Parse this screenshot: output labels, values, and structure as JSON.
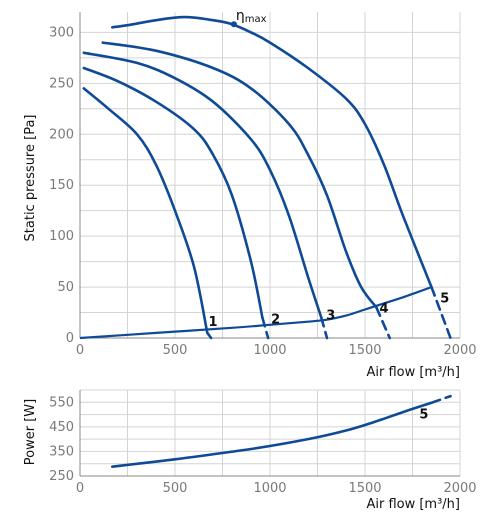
{
  "accent_color": "#0e4a96",
  "chart_data": [
    {
      "type": "line",
      "xlabel": "Air flow [m³/h]",
      "ylabel": "Static pressure [Pa]",
      "xlim": [
        0,
        2000
      ],
      "ylim": [
        0,
        320
      ],
      "xticks": [
        0,
        500,
        1000,
        1500,
        2000
      ],
      "yticks": [
        0,
        50,
        100,
        150,
        200,
        250,
        300
      ],
      "grid": true,
      "series": [
        {
          "name": "1",
          "x": [
            20,
            150,
            300,
            400,
            500,
            600,
            670
          ],
          "y": [
            245,
            225,
            200,
            170,
            125,
            70,
            5
          ],
          "dashed_x": [
            670,
            690
          ],
          "dashed_y": [
            5,
            0
          ]
        },
        {
          "name": "2",
          "x": [
            20,
            200,
            400,
            600,
            700,
            800,
            900,
            960
          ],
          "y": [
            265,
            252,
            232,
            205,
            180,
            140,
            75,
            20
          ],
          "dashed_x": [
            960,
            990
          ],
          "dashed_y": [
            20,
            0
          ]
        },
        {
          "name": "3",
          "x": [
            20,
            300,
            500,
            700,
            900,
            1000,
            1100,
            1200,
            1270
          ],
          "y": [
            280,
            270,
            255,
            232,
            195,
            165,
            120,
            60,
            20
          ],
          "dashed_x": [
            1270,
            1300
          ],
          "dashed_y": [
            20,
            0
          ]
        },
        {
          "name": "4",
          "x": [
            120,
            400,
            700,
            900,
            1100,
            1200,
            1300,
            1400,
            1480,
            1560
          ],
          "y": [
            290,
            282,
            265,
            245,
            210,
            180,
            140,
            85,
            50,
            30
          ],
          "dashed_x": [
            1560,
            1630
          ],
          "dashed_y": [
            30,
            0
          ]
        },
        {
          "name": "5",
          "x": [
            170,
            250,
            400,
            550,
            700,
            800,
            900,
            1000,
            1200,
            1400,
            1500,
            1600,
            1700,
            1850
          ],
          "y": [
            305,
            307,
            312,
            315,
            312,
            308,
            300,
            290,
            265,
            235,
            210,
            170,
            120,
            50
          ],
          "dashed_x": [
            1850,
            1950
          ],
          "dashed_y": [
            50,
            0
          ]
        },
        {
          "name": "system",
          "x": [
            0,
            400,
            800,
            1000,
            1200,
            1300,
            1400,
            1500,
            1600,
            1700,
            1850
          ],
          "y": [
            0,
            5,
            10,
            13,
            16,
            18,
            22,
            28,
            34,
            40,
            50
          ]
        }
      ],
      "curve_labels": [
        {
          "text": "1",
          "x": 700,
          "y": 12
        },
        {
          "text": "2",
          "x": 1030,
          "y": 14
        },
        {
          "text": "3",
          "x": 1320,
          "y": 18
        },
        {
          "text": "4",
          "x": 1600,
          "y": 25
        },
        {
          "text": "5",
          "x": 1920,
          "y": 35
        }
      ],
      "annotation": {
        "text": "η",
        "sub": "max",
        "x": 810,
        "y": 308
      }
    },
    {
      "type": "line",
      "xlabel": "Air flow [m³/h]",
      "ylabel": "Power [W]",
      "xlim": [
        0,
        2000
      ],
      "ylim": [
        250,
        600
      ],
      "xticks": [
        0,
        500,
        1000,
        1500,
        2000
      ],
      "yticks": [
        250,
        350,
        450,
        550
      ],
      "grid": true,
      "series": [
        {
          "name": "5",
          "x": [
            170,
            500,
            900,
            1200,
            1400,
            1550,
            1700,
            1850
          ],
          "y": [
            288,
            318,
            360,
            400,
            435,
            470,
            510,
            548
          ],
          "dashed_x": [
            1850,
            1950
          ],
          "dashed_y": [
            548,
            575
          ]
        }
      ],
      "curve_labels": [
        {
          "text": "5",
          "x": 1810,
          "y": 485
        }
      ]
    }
  ]
}
